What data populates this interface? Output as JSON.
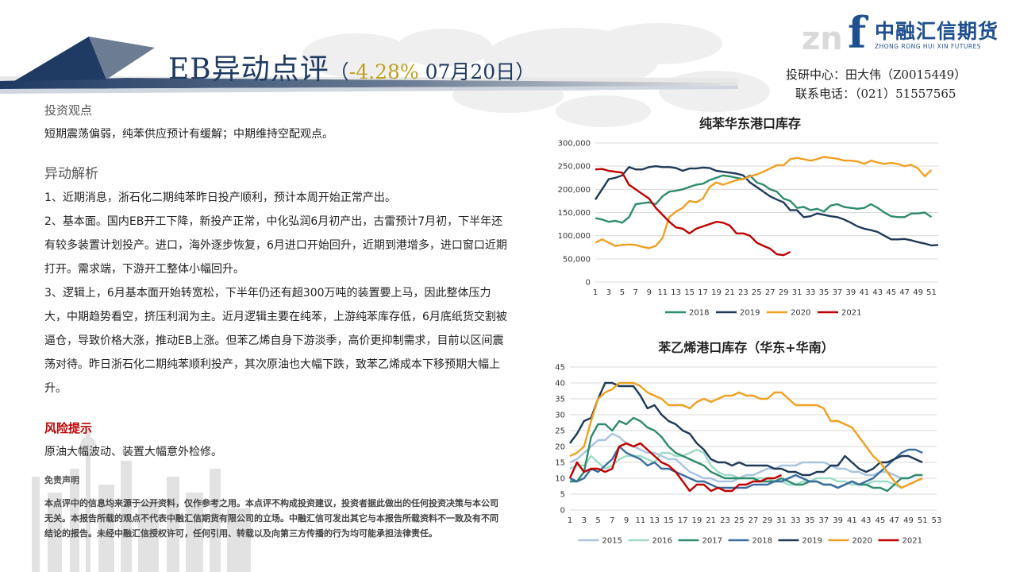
{
  "header": {
    "title_main": "EB异动点评",
    "title_paren_open": "（",
    "title_pct": "-4.28%",
    "title_date": " 07月20日）",
    "logo_cn": "中融汇信期货",
    "logo_en": "ZHONG RONG HUI XIN FUTURES",
    "logo_mark": "f",
    "logo_ghost": "zn",
    "contact_line1": "投研中心：田大伟（Z0015449）",
    "contact_line2": "联系电话：（021）51557565"
  },
  "body": {
    "view_heading": "投资观点",
    "view_text": "短期震荡偏弱，纯苯供应预计有缓解；中期维持空配观点。",
    "analysis_heading": "异动解析",
    "analysis_p1": "1、近期消息，浙石化二期纯苯昨日投产顺利，预计本周开始正常产出。",
    "analysis_p2": "2、基本面。国内EB开工下降，新投产正常，中化弘润6月初产出，古雷预计7月初，下半年还有较多装置计划投产。进口，海外逐步恢复，6月进口开始回升，近期到港增多，进口窗口近期打开。需求端，下游开工整体小幅回升。",
    "analysis_p3": "3、逻辑上，6月基本面开始转宽松，下半年仍还有超300万吨的装置要上马，因此整体压力大，中期趋势看空，挤压利润为主。近月逻辑主要在纯苯，上游纯苯库存低，6月底纸货交割被逼仓，导致价格大涨，推动EB上涨。但苯乙烯自身下游淡季，高价更抑制需求，目前以区间震荡对待。昨日浙石化二期纯苯顺利投产，其次原油也大幅下跌，致苯乙烯成本下移预期大幅上升。",
    "risk_heading": "风险提示",
    "risk_text": "原油大幅波动、装置大幅意外检修。",
    "disclaimer_heading": "免责声明",
    "disclaimer_text": "本点评中的信息均来源于公开资料，仅作参考之用。本点评不构成投资建议，投资者据此做出的任何投资决策与本公司无关。本报告所载的观点不代表中融汇信期货有限公司的立场。中融汇信可发出其它与本报告所载资料不一致及有不同结论的报告。未经中融汇信授权许可，任何引用、转载以及向第三方传播的行为均可能承担法律责任。"
  },
  "chart_data": [
    {
      "type": "line",
      "title": "纯苯华东港口库存",
      "xlabel": "",
      "ylabel": "",
      "ylim": [
        0,
        300000
      ],
      "y_ticks": [
        0,
        50000,
        100000,
        150000,
        200000,
        250000,
        300000
      ],
      "y_tick_labels": [
        "0",
        "50,000",
        "100,000",
        "150,000",
        "200,000",
        "250,000",
        "300,000"
      ],
      "x_ticks": [
        1,
        3,
        5,
        7,
        9,
        11,
        13,
        15,
        17,
        19,
        21,
        23,
        25,
        27,
        29,
        31,
        33,
        35,
        37,
        39,
        41,
        43,
        45,
        47,
        49,
        51
      ],
      "x_tick_labels": [
        "1",
        "3",
        "5",
        "7",
        "9",
        "11",
        "13",
        "15",
        "17",
        "19",
        "21",
        "23",
        "25",
        "27",
        "29",
        "31",
        "33",
        "35",
        "37",
        "39",
        "41",
        "43",
        "45",
        "47",
        "49",
        "51"
      ],
      "x_range": [
        1,
        52
      ],
      "grid": true,
      "legend_position": "bottom",
      "series": [
        {
          "name": "2018",
          "color": "#2e8b6e",
          "values": [
            138000,
            135000,
            130000,
            132000,
            128000,
            140000,
            168000,
            170000,
            172000,
            168000,
            185000,
            195000,
            197000,
            200000,
            205000,
            210000,
            212000,
            220000,
            225000,
            230000,
            228000,
            225000,
            222000,
            230000,
            215000,
            210000,
            200000,
            195000,
            180000,
            175000,
            160000,
            162000,
            155000,
            158000,
            152000,
            165000,
            168000,
            162000,
            160000,
            158000,
            160000,
            168000,
            160000,
            150000,
            142000,
            140000,
            140000,
            148000,
            148000,
            150000,
            140000
          ]
        },
        {
          "name": "2019",
          "color": "#1f3a58",
          "values": [
            178000,
            200000,
            222000,
            225000,
            230000,
            248000,
            243000,
            243000,
            248000,
            250000,
            248000,
            248000,
            246000,
            240000,
            245000,
            245000,
            247000,
            246000,
            240000,
            238000,
            236000,
            234000,
            230000,
            215000,
            205000,
            195000,
            185000,
            178000,
            172000,
            155000,
            155000,
            140000,
            142000,
            148000,
            145000,
            142000,
            140000,
            135000,
            128000,
            120000,
            115000,
            112000,
            108000,
            100000,
            92000,
            92000,
            93000,
            90000,
            86000,
            83000,
            79000,
            80000
          ]
        },
        {
          "name": "2020",
          "color": "#f0a020",
          "values": [
            85000,
            92000,
            85000,
            78000,
            80000,
            81000,
            80000,
            76000,
            73000,
            78000,
            95000,
            140000,
            152000,
            160000,
            175000,
            172000,
            180000,
            205000,
            215000,
            210000,
            215000,
            220000,
            222000,
            228000,
            232000,
            238000,
            245000,
            252000,
            252000,
            265000,
            268000,
            265000,
            262000,
            265000,
            270000,
            268000,
            266000,
            262000,
            262000,
            260000,
            255000,
            262000,
            258000,
            255000,
            257000,
            255000,
            250000,
            253000,
            245000,
            228000,
            242000
          ]
        },
        {
          "name": "2021",
          "color": "#c00000",
          "values": [
            243000,
            244000,
            240000,
            238000,
            236000,
            210000,
            200000,
            190000,
            180000,
            160000,
            145000,
            130000,
            118000,
            115000,
            105000,
            115000,
            120000,
            125000,
            130000,
            128000,
            122000,
            105000,
            105000,
            100000,
            85000,
            78000,
            72000,
            60000,
            58000,
            65000
          ]
        }
      ]
    },
    {
      "type": "line",
      "title": "苯乙烯港口库存（华东+华南）",
      "xlabel": "",
      "ylabel": "",
      "ylim": [
        0,
        45
      ],
      "y_ticks": [
        0,
        5,
        10,
        15,
        20,
        25,
        30,
        35,
        40,
        45
      ],
      "y_tick_labels": [
        "0",
        "5",
        "10",
        "15",
        "20",
        "25",
        "30",
        "35",
        "40",
        "45"
      ],
      "x_ticks": [
        1,
        3,
        5,
        7,
        9,
        11,
        13,
        15,
        17,
        19,
        21,
        23,
        25,
        27,
        29,
        31,
        33,
        35,
        37,
        39,
        41,
        43,
        45,
        47,
        49,
        51,
        53
      ],
      "x_tick_labels": [
        "1",
        "3",
        "5",
        "7",
        "9",
        "11",
        "13",
        "15",
        "17",
        "19",
        "21",
        "23",
        "25",
        "27",
        "29",
        "31",
        "33",
        "35",
        "37",
        "39",
        "41",
        "43",
        "45",
        "47",
        "49",
        "51",
        "53"
      ],
      "x_range": [
        1,
        53
      ],
      "grid": true,
      "legend_position": "bottom",
      "series": [
        {
          "name": "2015",
          "color": "#a8c4e0",
          "values": [
            15,
            16,
            18,
            20,
            22,
            22,
            24,
            23,
            21,
            20,
            19,
            18,
            18,
            17,
            16,
            16,
            14,
            12,
            11,
            10,
            10,
            9,
            9,
            9,
            10,
            11,
            11,
            12,
            13,
            13,
            14,
            14,
            14,
            15,
            15,
            15,
            15,
            14,
            13,
            13,
            12,
            12,
            11,
            11,
            12,
            12,
            11,
            10,
            10,
            11,
            11
          ]
        },
        {
          "name": "2016",
          "color": "#9fdac8",
          "values": [
            13,
            14,
            14,
            17,
            15,
            13,
            14,
            16,
            17,
            17,
            17,
            16,
            15,
            18,
            18,
            17,
            17,
            18,
            19,
            18,
            14,
            12,
            11,
            11,
            10,
            10,
            10,
            10,
            10,
            9,
            9,
            8,
            8,
            9,
            9,
            10,
            10,
            10,
            9,
            9,
            8,
            8,
            8,
            9,
            9,
            9,
            8,
            7,
            8,
            9,
            10
          ]
        },
        {
          "name": "2017",
          "color": "#2e8b6e",
          "values": [
            9,
            9,
            12,
            23,
            27,
            27,
            25,
            28,
            27,
            29,
            28,
            26,
            25,
            23,
            20,
            18,
            17,
            16,
            15,
            14,
            12,
            11,
            10,
            10,
            10,
            10,
            10,
            9,
            9,
            9,
            10,
            9,
            8,
            8,
            9,
            9,
            8,
            8,
            7,
            8,
            9,
            8,
            8,
            7,
            7,
            6,
            8,
            10,
            10,
            11,
            11
          ]
        },
        {
          "name": "2018",
          "color": "#3a6e9e",
          "values": [
            10,
            9,
            10,
            13,
            12,
            14,
            16,
            20,
            18,
            17,
            16,
            14,
            15,
            13,
            13,
            12,
            11,
            10,
            9,
            9,
            8,
            7,
            7,
            7,
            7,
            7,
            8,
            8,
            8,
            9,
            9,
            10,
            11,
            10,
            9,
            9,
            8,
            8,
            7,
            8,
            9,
            8,
            9,
            10,
            12,
            14,
            16,
            18,
            19,
            19,
            18
          ]
        },
        {
          "name": "2019",
          "color": "#1f3a58",
          "values": [
            21,
            24,
            28,
            29,
            35,
            40,
            40,
            39,
            39,
            39,
            36,
            32,
            33,
            30,
            28,
            27,
            25,
            24,
            21,
            19,
            16,
            15,
            15,
            14,
            15,
            14,
            14,
            14,
            14,
            13,
            13,
            12,
            12,
            11,
            11,
            12,
            12,
            14,
            14,
            17,
            15,
            13,
            12,
            13,
            15,
            15,
            16,
            17,
            17,
            16,
            15
          ]
        },
        {
          "name": "2020",
          "color": "#f0a020",
          "values": [
            17,
            18,
            20,
            28,
            35,
            37,
            38,
            40,
            40,
            40,
            39,
            37,
            36,
            35,
            33,
            33,
            33,
            32,
            34,
            35,
            34,
            35,
            36,
            36,
            37,
            36,
            36,
            35,
            35,
            37,
            37,
            35,
            33,
            33,
            33,
            33,
            32,
            28,
            28,
            27,
            26,
            23,
            20,
            17,
            15,
            12,
            9,
            7,
            8,
            9,
            10
          ]
        },
        {
          "name": "2021",
          "color": "#c00000",
          "values": [
            10,
            15,
            12,
            13,
            13,
            12,
            13,
            20,
            21,
            20,
            21,
            19,
            17,
            15,
            14,
            12,
            9,
            6,
            8,
            8,
            6,
            7,
            6,
            6,
            8,
            8,
            9,
            9,
            10,
            10,
            11
          ]
        }
      ]
    }
  ]
}
